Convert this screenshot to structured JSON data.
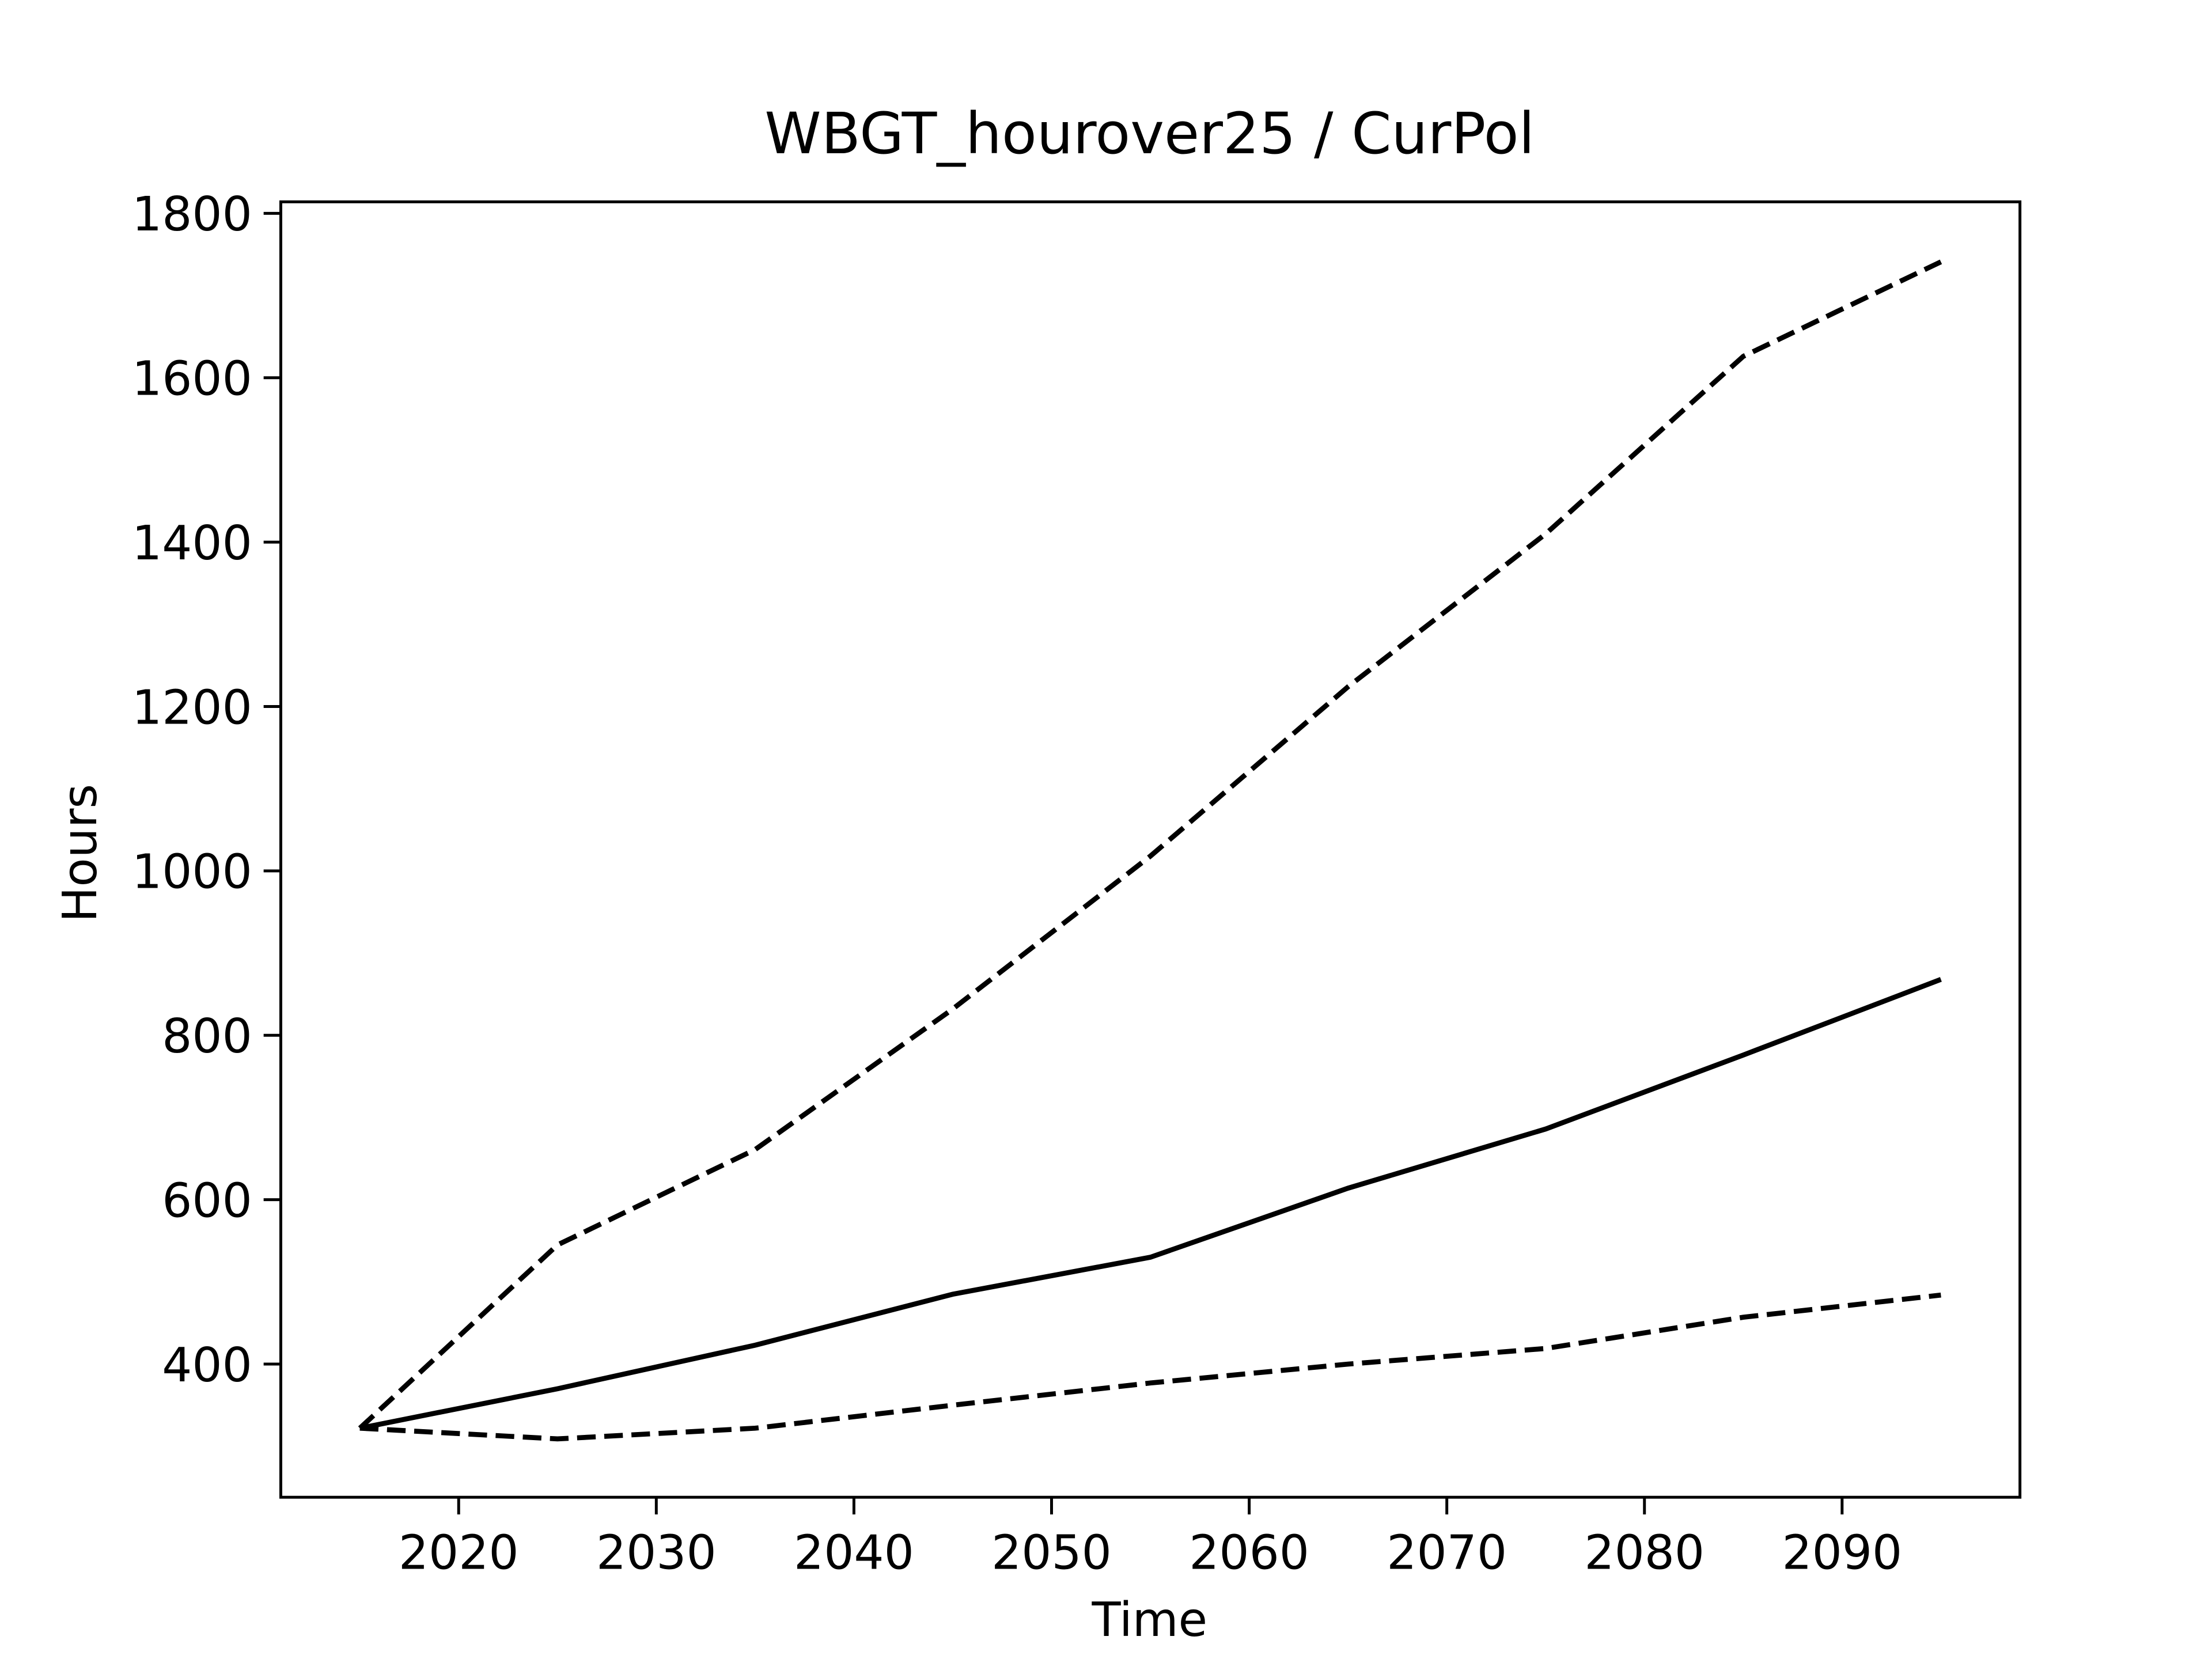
{
  "chart_data": {
    "type": "line",
    "title": "WBGT_hourover25 / CurPol",
    "x_label": "Time",
    "y_label": "Hours",
    "x": [
      2015,
      2025,
      2035,
      2045,
      2055,
      2065,
      2075,
      2085,
      2095
    ],
    "series": [
      {
        "color": "#000000",
        "linestyle": "dashed",
        "values": [
          322,
          545,
          661,
          832,
          1018,
          1224,
          1410,
          1626,
          1741
        ]
      },
      {
        "color": "#000000",
        "linestyle": "solid",
        "values": [
          322,
          370,
          423,
          485,
          530,
          614,
          686,
          776,
          868
        ]
      },
      {
        "color": "#000000",
        "linestyle": "dashed",
        "values": [
          322,
          309,
          322,
          350,
          377,
          400,
          419,
          457,
          484
        ]
      }
    ],
    "xlim": [
      2011,
      2099
    ],
    "xticks": [
      2020,
      2030,
      2040,
      2050,
      2060,
      2070,
      2080,
      2090
    ],
    "ylim": [
      238,
      1814
    ],
    "yticks": [
      400,
      600,
      800,
      1000,
      1200,
      1400,
      1600,
      1800
    ],
    "grid": false
  }
}
